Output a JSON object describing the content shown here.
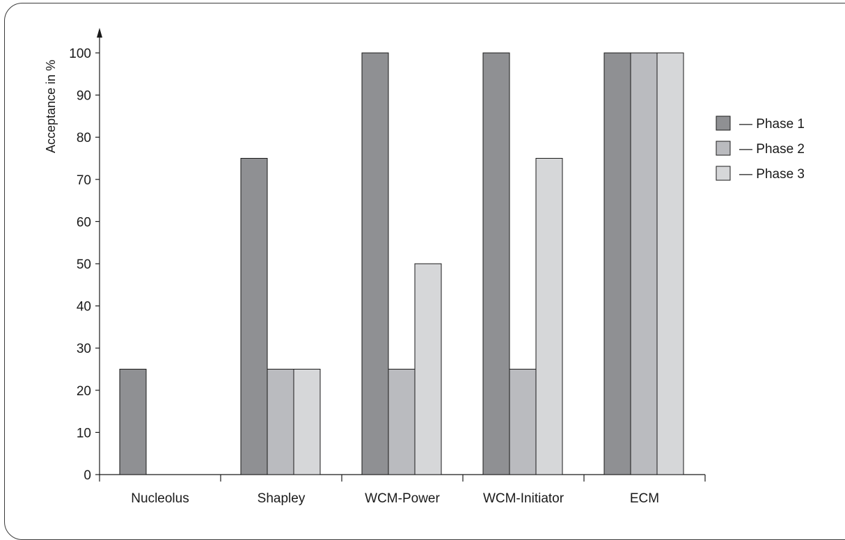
{
  "chart_data": {
    "type": "bar",
    "title": "",
    "xlabel": "",
    "ylabel": "Acceptance in %",
    "ylim": [
      0,
      100
    ],
    "yticks": [
      0,
      10,
      20,
      30,
      40,
      50,
      60,
      70,
      80,
      90,
      100
    ],
    "categories": [
      "Nucleolus",
      "Shapley",
      "WCM-Power",
      "WCM-Initiator",
      "ECM"
    ],
    "series": [
      {
        "name": "Phase 1",
        "legend_text": "— Phase 1",
        "color": "#8f9093",
        "values": [
          25,
          75,
          100,
          100,
          100
        ]
      },
      {
        "name": "Phase 2",
        "legend_text": "— Phase 2",
        "color": "#babbbf",
        "values": [
          0,
          25,
          25,
          25,
          100
        ]
      },
      {
        "name": "Phase 3",
        "legend_text": "— Phase 3",
        "color": "#d6d7d9",
        "values": [
          0,
          25,
          50,
          75,
          100
        ]
      }
    ],
    "grid": false,
    "legend_position": "right"
  }
}
